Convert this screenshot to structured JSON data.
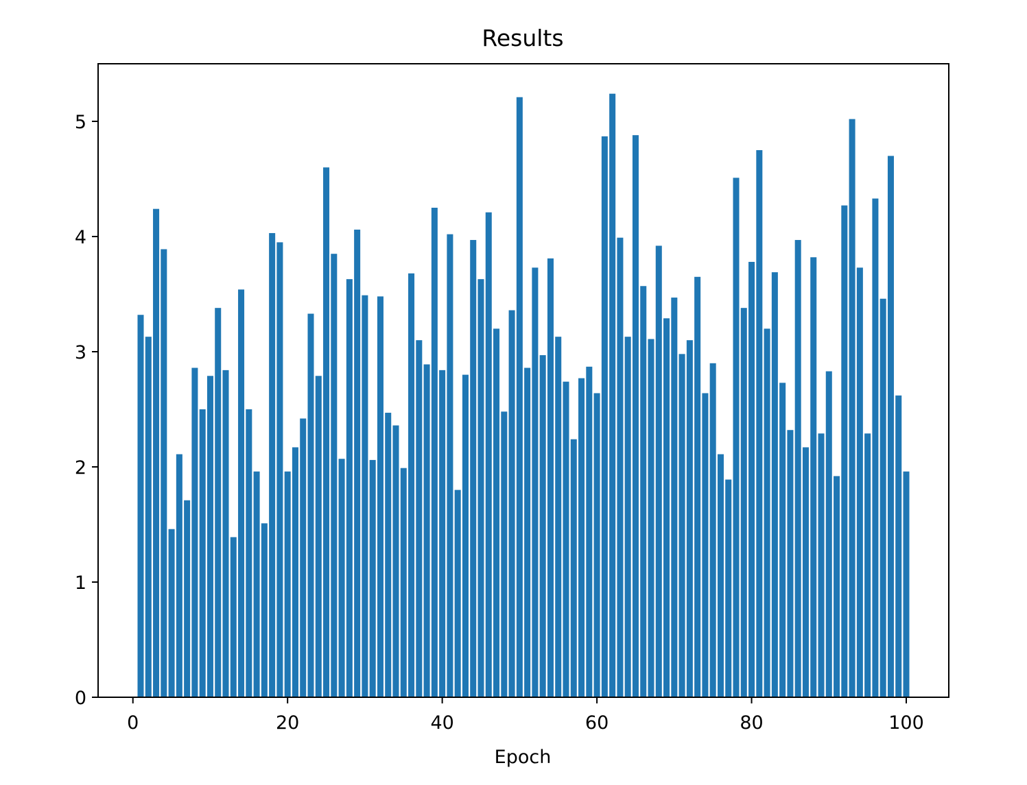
{
  "chart_data": {
    "type": "bar",
    "title": "Results",
    "xlabel": "Epoch",
    "ylabel": "",
    "bar_color": "#1f77b4",
    "xlim": [
      -4.5,
      105.5
    ],
    "ylim": [
      0,
      5.5
    ],
    "xticks": [
      0,
      20,
      40,
      60,
      80,
      100
    ],
    "yticks": [
      0,
      1,
      2,
      3,
      4,
      5
    ],
    "grid": false,
    "x": [
      1,
      2,
      3,
      4,
      5,
      6,
      7,
      8,
      9,
      10,
      11,
      12,
      13,
      14,
      15,
      16,
      17,
      18,
      19,
      20,
      21,
      22,
      23,
      24,
      25,
      26,
      27,
      28,
      29,
      30,
      31,
      32,
      33,
      34,
      35,
      36,
      37,
      38,
      39,
      40,
      41,
      42,
      43,
      44,
      45,
      46,
      47,
      48,
      49,
      50,
      51,
      52,
      53,
      54,
      55,
      56,
      57,
      58,
      59,
      60,
      61,
      62,
      63,
      64,
      65,
      66,
      67,
      68,
      69,
      70,
      71,
      72,
      73,
      74,
      75,
      76,
      77,
      78,
      79,
      80,
      81,
      82,
      83,
      84,
      85,
      86,
      87,
      88,
      89,
      90,
      91,
      92,
      93,
      94,
      95,
      96,
      97,
      98,
      99,
      100
    ],
    "values": [
      3.32,
      3.13,
      4.24,
      3.89,
      1.46,
      2.11,
      1.71,
      2.86,
      2.5,
      2.79,
      3.38,
      2.84,
      1.39,
      3.54,
      2.5,
      1.96,
      1.51,
      4.03,
      3.95,
      1.96,
      2.17,
      2.42,
      3.33,
      2.79,
      4.6,
      3.85,
      2.07,
      3.63,
      4.06,
      3.49,
      2.06,
      3.48,
      2.47,
      2.36,
      1.99,
      3.68,
      3.1,
      2.89,
      4.25,
      2.84,
      4.02,
      1.8,
      2.8,
      3.97,
      3.63,
      4.21,
      3.2,
      2.48,
      3.36,
      5.21,
      2.86,
      3.73,
      2.97,
      3.81,
      3.13,
      2.74,
      2.24,
      2.77,
      2.87,
      2.64,
      4.87,
      5.24,
      3.99,
      3.13,
      4.88,
      3.57,
      3.11,
      3.92,
      3.29,
      3.47,
      2.98,
      3.1,
      3.65,
      2.64,
      2.9,
      2.11,
      1.89,
      4.51,
      3.38,
      3.78,
      4.75,
      3.2,
      3.69,
      2.73,
      2.32,
      3.97,
      2.17,
      3.82,
      2.29,
      2.83,
      1.92,
      4.27,
      5.02,
      3.73,
      2.29,
      4.33,
      3.46,
      4.7,
      2.62,
      1.96
    ]
  }
}
